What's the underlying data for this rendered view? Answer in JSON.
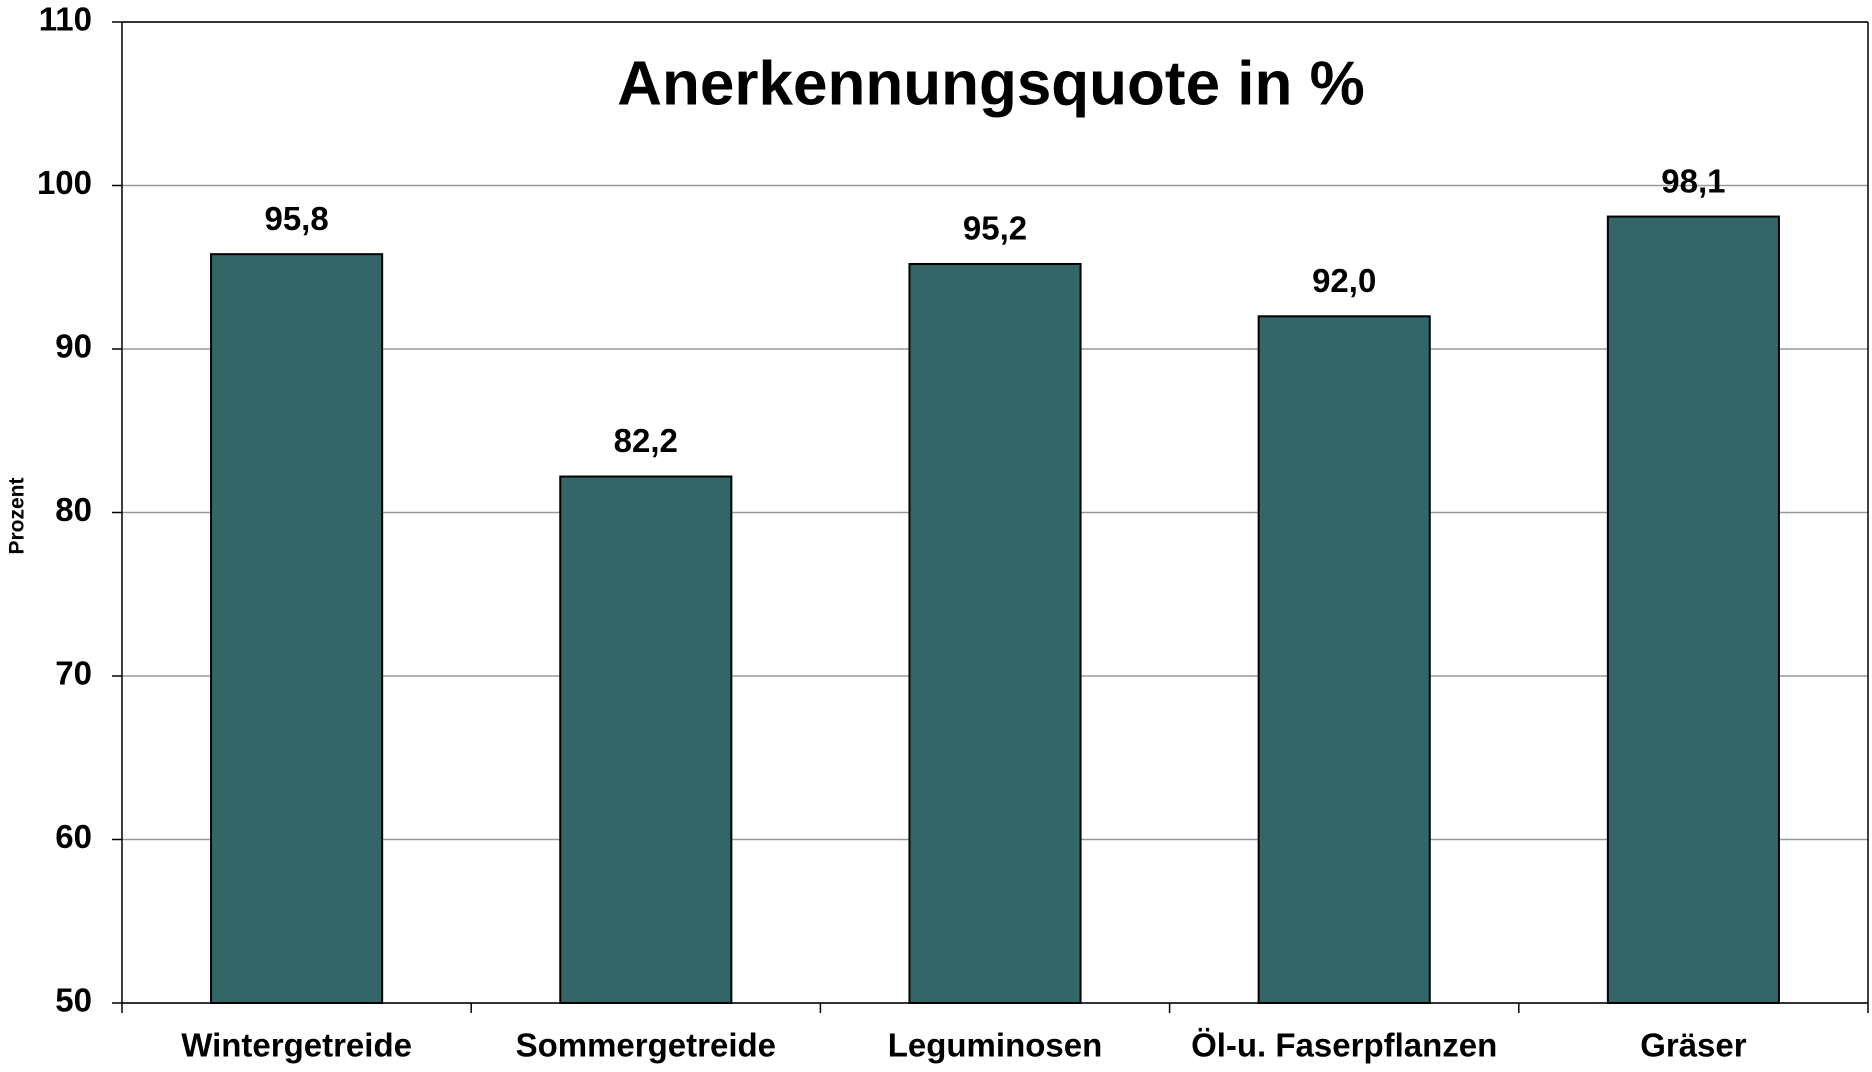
{
  "chart_data": {
    "type": "bar",
    "title": "Anerkennungsquote in %",
    "y_label": "Prozent",
    "categories": [
      "Wintergetreide",
      "Sommergetreide",
      "Leguminosen",
      "Öl-u. Faserpflanzen",
      "Gräser"
    ],
    "values": [
      95.8,
      82.2,
      95.2,
      92.0,
      98.1
    ],
    "value_labels": [
      "95,8",
      "82,2",
      "95,2",
      "92,0",
      "98,1"
    ],
    "color": "#336666",
    "ylim": [
      50,
      110
    ],
    "yticks": [
      50,
      60,
      70,
      80,
      90,
      100,
      110
    ],
    "grid": true
  }
}
